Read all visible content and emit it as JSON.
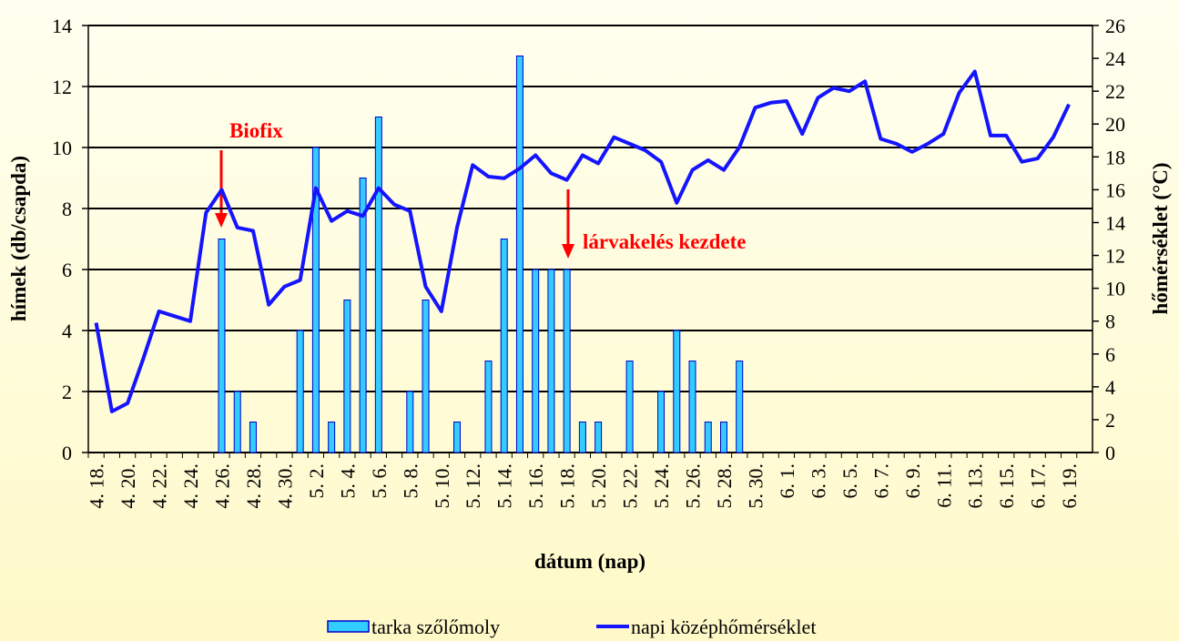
{
  "chart_data": {
    "type": "bar-line",
    "x_label": "dátum (nap)",
    "y_label": "hímek (db/csapda)",
    "y2_label": "hőmérséklet (°C)",
    "annotations": [
      "Biofix",
      "lárvakelés kezdete"
    ],
    "categories": [
      "4. 18.",
      null,
      "4. 20.",
      null,
      "4. 22.",
      null,
      "4. 24.",
      null,
      "4. 26.",
      null,
      "4. 28.",
      null,
      "4. 30.",
      null,
      "5. 2.",
      null,
      "5. 4.",
      null,
      "5. 6.",
      null,
      "5. 8.",
      null,
      "5. 10.",
      null,
      "5. 12.",
      null,
      "5. 14.",
      null,
      "5. 16.",
      null,
      "5. 18.",
      null,
      "5. 20.",
      null,
      "5. 22.",
      null,
      "5. 24.",
      null,
      "5. 26.",
      null,
      "5. 28.",
      null,
      "5. 30.",
      null,
      "6. 1.",
      null,
      "6. 3.",
      null,
      "6. 5.",
      null,
      "6. 7.",
      null,
      "6. 9.",
      null,
      "6. 11.",
      null,
      "6. 13.",
      null,
      "6. 15.",
      null,
      "6. 17.",
      null,
      "6. 19.",
      null
    ],
    "series": [
      {
        "name": "tarka szőlőmoly",
        "type": "bar",
        "color": "#33ccff",
        "stroke": "#0000cc",
        "values": [
          0,
          0,
          0,
          0,
          0,
          0,
          0,
          0,
          7,
          2,
          1,
          0,
          0,
          4,
          10,
          1,
          5,
          9,
          11,
          0,
          2,
          5,
          0,
          1,
          0,
          3,
          7,
          13,
          6,
          6,
          6,
          1,
          1,
          0,
          3,
          0,
          2,
          4,
          3,
          1,
          1,
          3,
          null,
          null,
          null,
          null,
          null,
          null,
          null,
          null,
          null,
          null,
          null,
          null,
          null,
          null,
          null,
          null,
          null,
          null,
          null,
          null,
          null,
          null
        ]
      },
      {
        "name": "napi középhőmérséklet",
        "type": "line",
        "axis": "y2",
        "color": "#1414ff",
        "values": [
          7.9,
          2.5,
          3.0,
          5.7,
          8.6,
          8.3,
          8.0,
          14.6,
          16.0,
          13.7,
          13.5,
          9.0,
          10.1,
          10.5,
          16.1,
          14.1,
          14.7,
          14.4,
          16.1,
          15.1,
          14.7,
          10.1,
          8.6,
          13.7,
          17.5,
          16.8,
          16.7,
          17.3,
          18.1,
          17.0,
          16.6,
          18.1,
          17.6,
          19.2,
          18.8,
          18.4,
          17.7,
          15.2,
          17.2,
          17.8,
          17.2,
          18.6,
          21.0,
          21.3,
          21.4,
          19.4,
          21.6,
          22.2,
          22.0,
          22.6,
          19.1,
          18.8,
          18.3,
          18.8,
          19.4,
          21.9,
          23.2,
          19.3,
          19.3,
          17.7,
          17.9,
          19.2,
          21.2,
          null
        ]
      }
    ],
    "ylim": [
      0,
      14
    ],
    "yticks": [
      0,
      2,
      4,
      6,
      8,
      10,
      12,
      14
    ],
    "y2lim": [
      0,
      26
    ],
    "y2ticks": [
      0,
      2,
      4,
      6,
      8,
      10,
      12,
      14,
      16,
      18,
      20,
      22,
      24,
      26
    ],
    "grid": true,
    "legend": "bottom"
  }
}
